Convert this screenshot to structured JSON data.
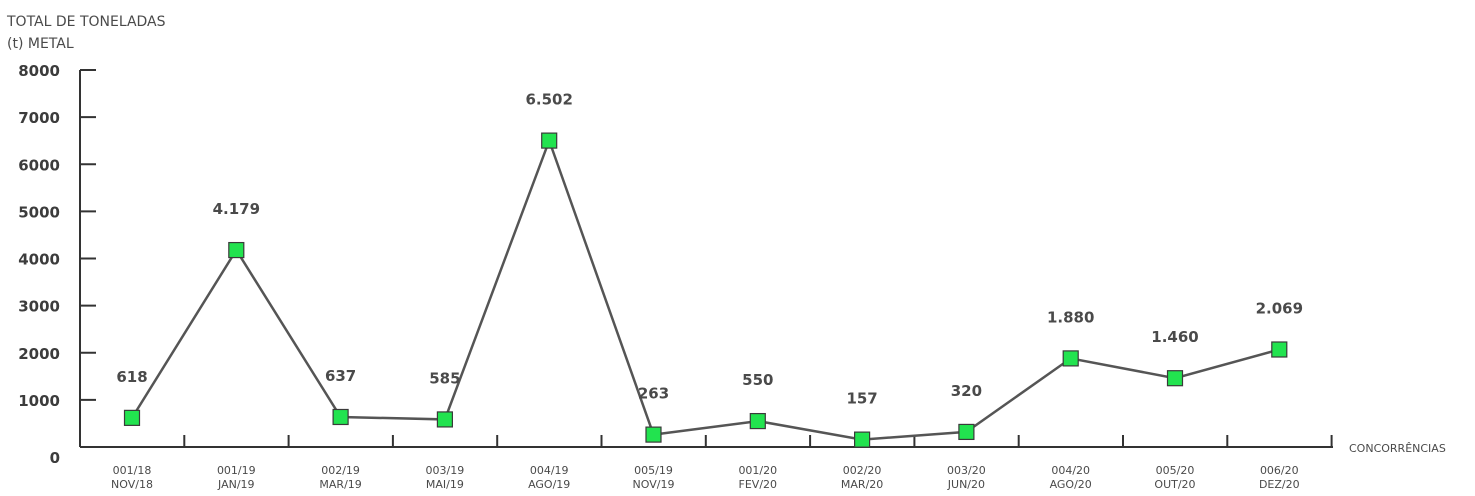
{
  "chart_data": {
    "type": "line",
    "ylabel_line1": "TOTAL DE TONELADAS",
    "ylabel_line2": "(t) METAL",
    "xlabel": "CONCORRÊNCIAS",
    "ylim": [
      0,
      8000
    ],
    "yticks": [
      "0",
      "1000",
      "2000",
      "3000",
      "4000",
      "5000",
      "6000",
      "7000",
      "8000"
    ],
    "categories": [
      [
        "001/18",
        "NOV/18"
      ],
      [
        "001/19",
        "JAN/19"
      ],
      [
        "002/19",
        "MAR/19"
      ],
      [
        "003/19",
        "MAI/19"
      ],
      [
        "004/19",
        "AGO/19"
      ],
      [
        "005/19",
        "NOV/19"
      ],
      [
        "001/20",
        "FEV/20"
      ],
      [
        "002/20",
        "MAR/20"
      ],
      [
        "003/20",
        "JUN/20"
      ],
      [
        "004/20",
        "AGO/20"
      ],
      [
        "005/20",
        "OUT/20"
      ],
      [
        "006/20",
        "DEZ/20"
      ]
    ],
    "values": [
      618,
      4179,
      637,
      585,
      6502,
      263,
      550,
      157,
      320,
      1880,
      1460,
      2069
    ],
    "data_labels": [
      "618",
      "4.179",
      "637",
      "585",
      "6.502",
      "263",
      "550",
      "157",
      "320",
      "1.880",
      "1.460",
      "2.069"
    ],
    "colors": {
      "line": "#555555",
      "marker": "#22e34f",
      "marker_border": "#3a3a3a",
      "axis": "#333333"
    }
  }
}
